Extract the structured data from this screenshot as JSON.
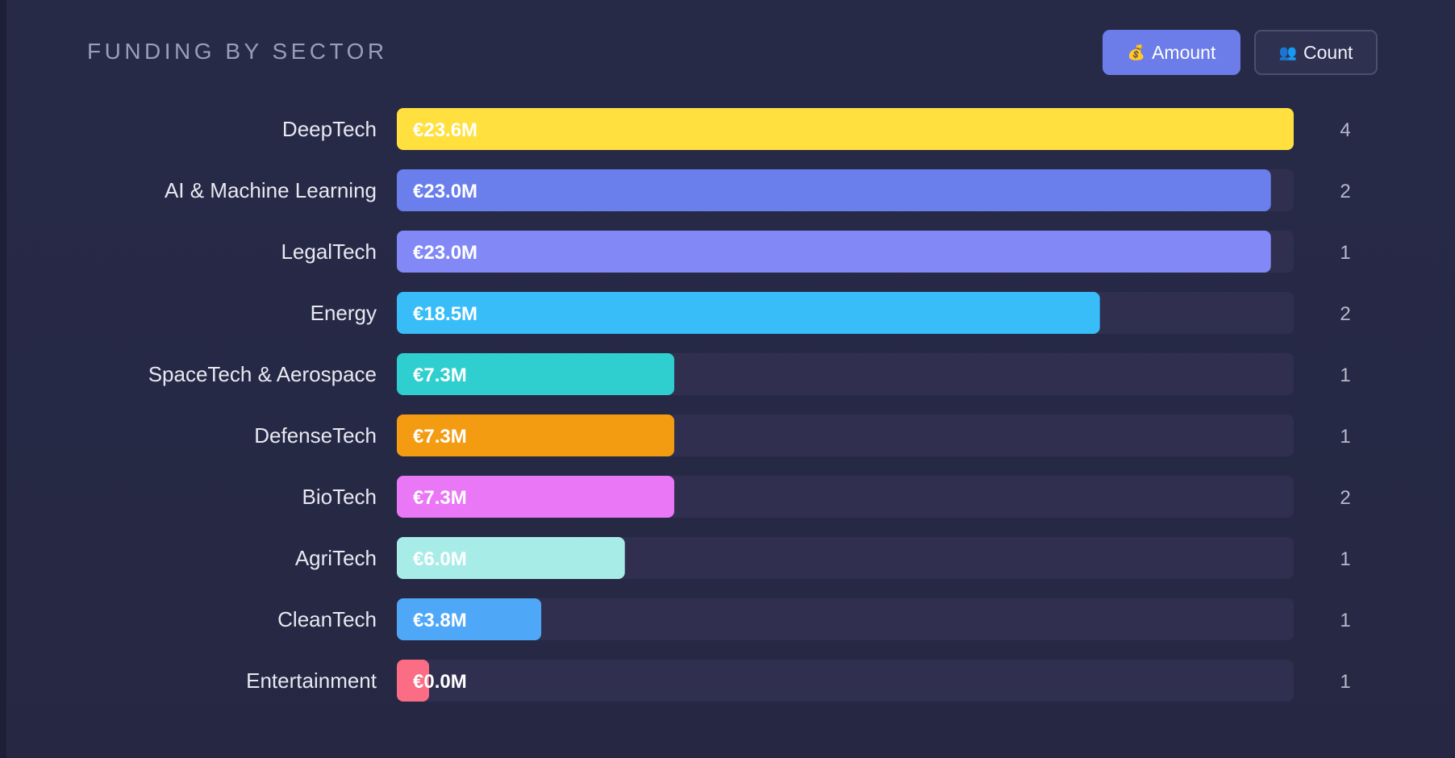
{
  "header": {
    "title": "FUNDING BY SECTOR",
    "amount_button": {
      "icon": "money-bag-icon",
      "glyph": "💰",
      "label": "Amount"
    },
    "count_button": {
      "icon": "people-icon",
      "glyph": "👥",
      "label": "Count"
    }
  },
  "colors": {
    "track": "#302f4f",
    "accent": "#6c7ce9"
  },
  "chart_data": {
    "type": "bar",
    "orientation": "horizontal",
    "title": "FUNDING BY SECTOR",
    "xlabel": "",
    "ylabel": "",
    "max_value": 23.6,
    "categories": [
      "DeepTech",
      "AI & Machine Learning",
      "LegalTech",
      "Energy",
      "SpaceTech & Aerospace",
      "DefenseTech",
      "BioTech",
      "AgriTech",
      "CleanTech",
      "Entertainment"
    ],
    "values": [
      23.6,
      23.0,
      23.0,
      18.5,
      7.3,
      7.3,
      7.3,
      6.0,
      3.8,
      0.0
    ],
    "value_labels": [
      "€23.6M",
      "€23.0M",
      "€23.0M",
      "€18.5M",
      "€7.3M",
      "€7.3M",
      "€7.3M",
      "€6.0M",
      "€3.8M",
      "€0.0M"
    ],
    "counts": [
      4,
      2,
      1,
      2,
      1,
      1,
      2,
      1,
      1,
      1
    ],
    "bar_colors": [
      "#ffe03f",
      "#6a7fec",
      "#8288f6",
      "#38bdf8",
      "#2fcfd0",
      "#f39c12",
      "#ea77f5",
      "#a8ece8",
      "#4fa7f8",
      "#fa6d84"
    ]
  }
}
